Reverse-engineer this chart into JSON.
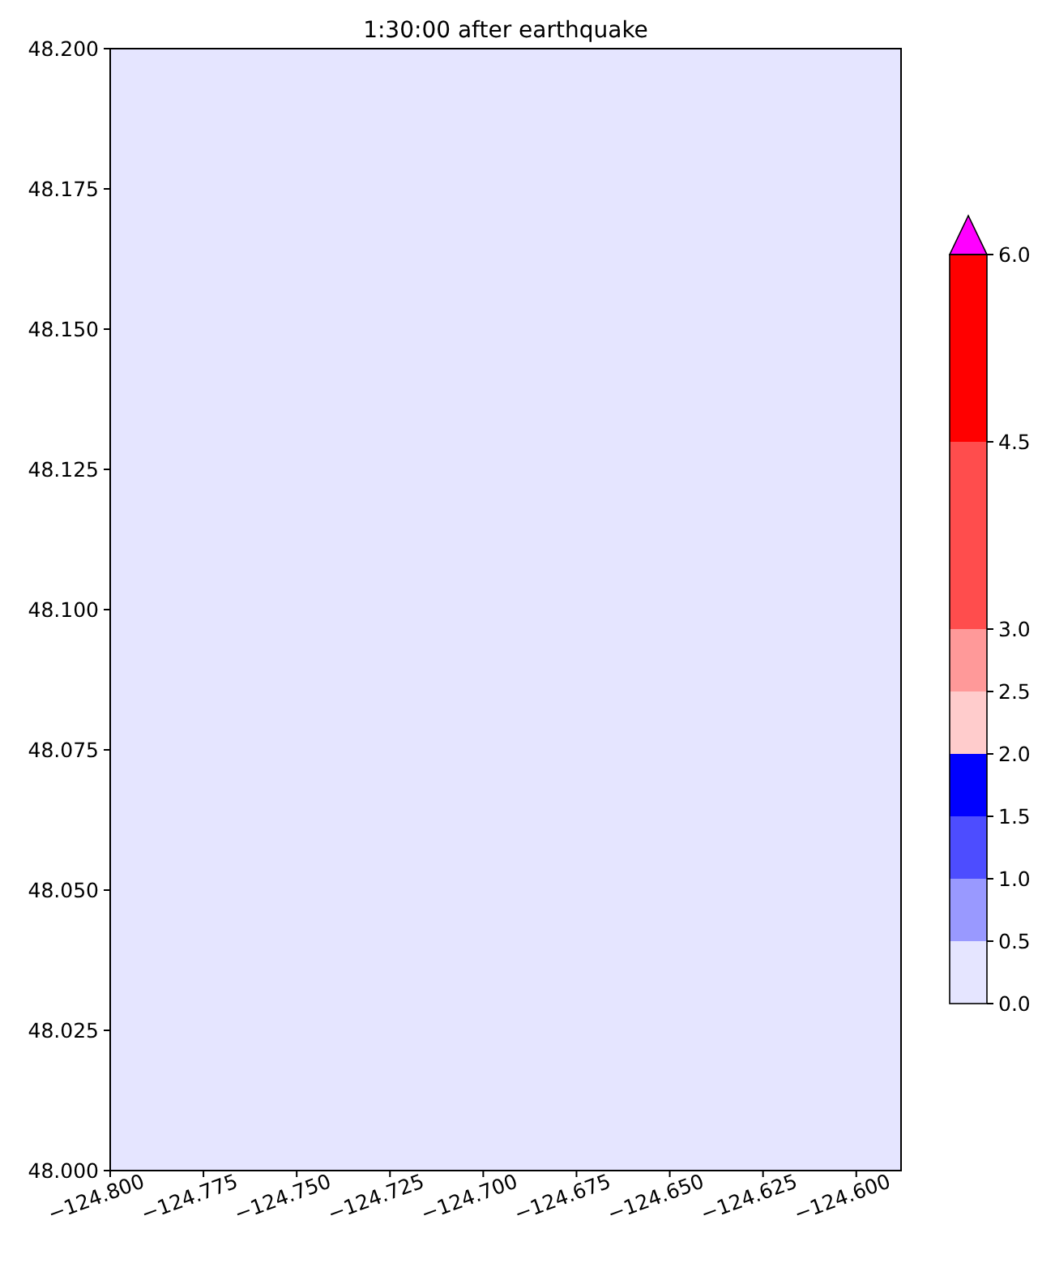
{
  "chart_data": {
    "type": "heatmap",
    "title": "1:30:00 after earthquake",
    "xlim": [
      -124.8,
      -124.588
    ],
    "ylim": [
      48.0,
      48.2
    ],
    "xticks": [
      {
        "value": -124.8,
        "label": "−124.800"
      },
      {
        "value": -124.775,
        "label": "−124.775"
      },
      {
        "value": -124.75,
        "label": "−124.750"
      },
      {
        "value": -124.725,
        "label": "−124.725"
      },
      {
        "value": -124.7,
        "label": "−124.700"
      },
      {
        "value": -124.675,
        "label": "−124.675"
      },
      {
        "value": -124.65,
        "label": "−124.650"
      },
      {
        "value": -124.625,
        "label": "−124.625"
      },
      {
        "value": -124.6,
        "label": "−124.600"
      }
    ],
    "yticks": [
      {
        "value": 48.0,
        "label": "48.000"
      },
      {
        "value": 48.025,
        "label": "48.025"
      },
      {
        "value": 48.05,
        "label": "48.050"
      },
      {
        "value": 48.075,
        "label": "48.075"
      },
      {
        "value": 48.1,
        "label": "48.100"
      },
      {
        "value": 48.125,
        "label": "48.125"
      },
      {
        "value": 48.15,
        "label": "48.150"
      },
      {
        "value": 48.175,
        "label": "48.175"
      },
      {
        "value": 48.2,
        "label": "48.200"
      }
    ],
    "cells": [
      [
        0
      ]
    ],
    "clim": [
      0,
      6
    ],
    "cticks": [
      {
        "value": 0,
        "label": "0.0"
      },
      {
        "value": 0.5,
        "label": "0.5"
      },
      {
        "value": 1,
        "label": "1.0"
      },
      {
        "value": 1.5,
        "label": "1.5"
      },
      {
        "value": 2,
        "label": "2.0"
      },
      {
        "value": 2.5,
        "label": "2.5"
      },
      {
        "value": 3,
        "label": "3.0"
      },
      {
        "value": 4.5,
        "label": "4.5"
      },
      {
        "value": 6,
        "label": "6.0"
      }
    ],
    "colors": [
      "#e5e5ff",
      "#9999ff",
      "#4d4dff",
      "#0000ff",
      "#ffcccc",
      "#ff9999",
      "#ff4d4d",
      "#ff0000",
      "#ff00ff"
    ]
  }
}
